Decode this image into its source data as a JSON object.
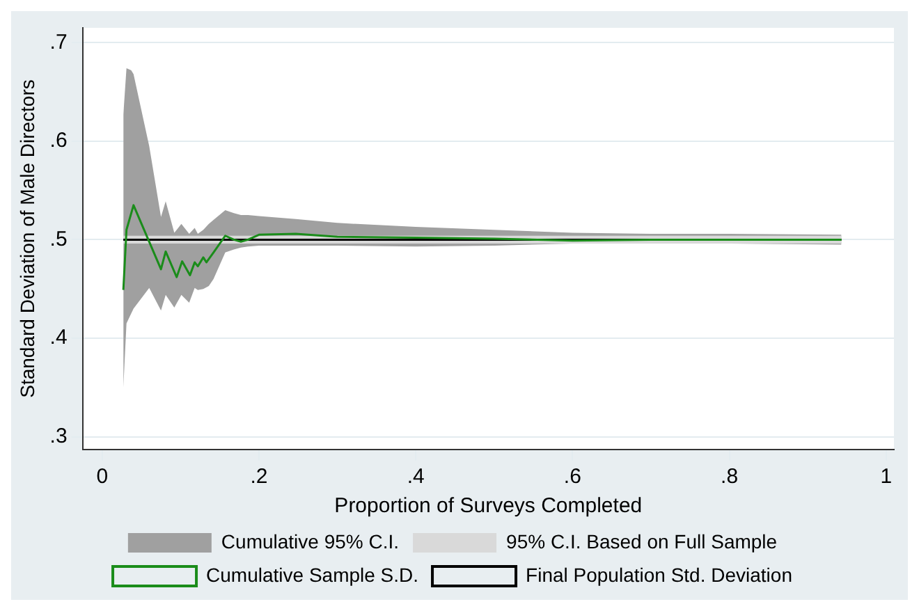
{
  "chart_data": {
    "type": "line",
    "xlabel": "Proportion of Surveys Completed",
    "ylabel": "Standard Deviation of Male Directors",
    "xlim": [
      -0.025,
      1.01
    ],
    "ylim": [
      0.287,
      0.715
    ],
    "xticks": [
      0,
      {
        "value": 0.2,
        "label": ".2"
      },
      {
        "value": 0.4,
        "label": ".4"
      },
      {
        "value": 0.6,
        "label": ".6"
      },
      {
        "value": 0.8,
        "label": ".8"
      },
      1
    ],
    "yticks": [
      {
        "value": 0.3,
        "label": ".3"
      },
      {
        "value": 0.4,
        "label": ".4"
      },
      {
        "value": 0.5,
        "label": ".5"
      },
      {
        "value": 0.6,
        "label": ".6"
      },
      {
        "value": 0.7,
        "label": ".7"
      }
    ],
    "grid": "y",
    "legend": "bottom",
    "marker": "none",
    "series": [
      {
        "name": "Cumulative 95% C.I.",
        "type": "line",
        "color": "#a0a0a0",
        "x": [
          0.027,
          0.031,
          0.037,
          0.04,
          0.06,
          0.075,
          0.081,
          0.092,
          0.101,
          0.111,
          0.118,
          0.122,
          0.129,
          0.136,
          0.142,
          0.157,
          0.168,
          0.177,
          0.186,
          0.2,
          0.247,
          0.3,
          0.4,
          0.5,
          0.6,
          0.7,
          0.8,
          0.943
        ],
        "values": [
          null,
          null,
          null,
          null,
          null,
          null,
          null,
          null,
          null,
          null,
          null,
          null,
          null,
          null,
          null,
          null,
          null,
          null,
          null,
          null,
          null,
          null,
          null,
          null,
          null,
          null,
          null,
          null
        ],
        "upper": [
          0.627,
          0.674,
          0.672,
          0.668,
          0.595,
          0.523,
          0.539,
          0.507,
          0.516,
          0.506,
          0.512,
          0.506,
          0.51,
          0.516,
          0.52,
          0.53,
          0.527,
          0.525,
          0.525,
          0.524,
          0.521,
          0.517,
          0.513,
          0.51,
          0.507,
          0.506,
          0.506,
          0.505
        ],
        "lower": [
          0.35,
          0.415,
          0.425,
          0.43,
          0.451,
          0.428,
          0.444,
          0.431,
          0.444,
          0.436,
          0.451,
          0.449,
          0.45,
          0.453,
          0.46,
          0.487,
          0.49,
          0.492,
          0.493,
          0.494,
          0.494,
          0.494,
          0.493,
          0.494,
          0.496,
          0.496,
          0.496,
          0.495
        ]
      },
      {
        "name": "95% C.I. Based on Full Sample",
        "type": "line",
        "color": "#d9d9d9",
        "x": [
          0.027,
          0.943
        ],
        "values": [
          null,
          null
        ],
        "upper": [
          0.504,
          0.504
        ],
        "lower": [
          0.496,
          0.496
        ]
      },
      {
        "name": "Cumulative Sample S.D.",
        "type": "line",
        "color": "#1a8c1a",
        "x": [
          0.027,
          0.031,
          0.04,
          0.075,
          0.081,
          0.095,
          0.102,
          0.112,
          0.118,
          0.122,
          0.129,
          0.133,
          0.142,
          0.157,
          0.168,
          0.177,
          0.186,
          0.2,
          0.247,
          0.3,
          0.4,
          0.5,
          0.6,
          0.7,
          0.8,
          0.943
        ],
        "values": [
          0.449,
          0.51,
          0.535,
          0.47,
          0.488,
          0.462,
          0.478,
          0.464,
          0.477,
          0.473,
          0.482,
          0.477,
          0.487,
          0.504,
          0.5,
          0.498,
          0.5,
          0.505,
          0.506,
          0.503,
          0.502,
          0.501,
          0.499,
          0.5,
          0.5,
          0.5
        ]
      },
      {
        "name": "Final Population Std. Deviation",
        "type": "line",
        "color": "#000000",
        "x": [
          0.027,
          0.943
        ],
        "values": [
          0.5,
          0.5
        ]
      }
    ]
  }
}
